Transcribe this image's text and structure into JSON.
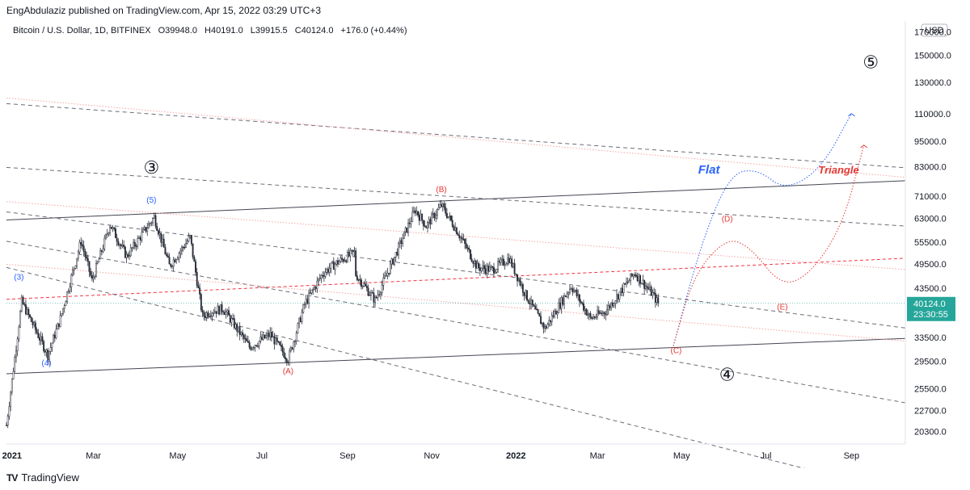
{
  "header": {
    "publisher": "EngAbdulaziz published on TradingView.com, Apr 15, 2022 03:29 UTC+3"
  },
  "chart_data": {
    "type": "candlestick",
    "symbol": "Bitcoin / U.S. Dollar, 1D, BITFINEX",
    "ohlc": {
      "open": "O39948.0",
      "high": "H40191.0",
      "low": "L39915.5",
      "close": "C40124.0",
      "change": "+176.0 (+0.44%)"
    },
    "currency": "USD",
    "price_labels": [
      "170000.0",
      "150000.0",
      "130000.0",
      "110000.0",
      "95000.0",
      "83000.0",
      "71000.0",
      "63000.0",
      "55500.0",
      "49500.0",
      "43500.0",
      "33500.0",
      "29500.0",
      "25500.0",
      "22700.0",
      "20300.0"
    ],
    "y_scale": "log",
    "x_labels": [
      "2021",
      "Mar",
      "May",
      "Jul",
      "Sep",
      "Nov",
      "2022",
      "Mar",
      "May",
      "Jul",
      "Sep"
    ],
    "x_label_dates": [
      "2021-01-01",
      "2021-03-01",
      "2021-05-01",
      "2021-07-01",
      "2021-09-01",
      "2021-11-01",
      "2022-01-01",
      "2022-03-01",
      "2022-05-01",
      "2022-07-01",
      "2022-09-01"
    ],
    "last_price": "40124.0",
    "countdown": "23:30:55",
    "close_path": [
      [
        "2020-12-28",
        21000
      ],
      [
        "2021-01-08",
        40500
      ],
      [
        "2021-01-27",
        30500
      ],
      [
        "2021-02-05",
        37000
      ],
      [
        "2021-02-20",
        55900
      ],
      [
        "2021-02-28",
        45200
      ],
      [
        "2021-03-13",
        61000
      ],
      [
        "2021-03-25",
        51500
      ],
      [
        "2021-04-14",
        63500
      ],
      [
        "2021-04-25",
        49000
      ],
      [
        "2021-05-10",
        57000
      ],
      [
        "2021-05-19",
        37500
      ],
      [
        "2021-05-25",
        38500
      ],
      [
        "2021-06-03",
        39000
      ],
      [
        "2021-06-22",
        31800
      ],
      [
        "2021-07-07",
        34000
      ],
      [
        "2021-07-20",
        29800
      ],
      [
        "2021-08-01",
        40000
      ],
      [
        "2021-08-14",
        47000
      ],
      [
        "2021-08-23",
        49500
      ],
      [
        "2021-09-06",
        52600
      ],
      [
        "2021-09-07",
        46800
      ],
      [
        "2021-09-21",
        40800
      ],
      [
        "2021-10-01",
        48000
      ],
      [
        "2021-10-20",
        66000
      ],
      [
        "2021-10-28",
        60500
      ],
      [
        "2021-11-08",
        67600
      ],
      [
        "2021-11-20",
        58500
      ],
      [
        "2021-12-04",
        48600
      ],
      [
        "2021-12-15",
        48000
      ],
      [
        "2021-12-27",
        51000
      ],
      [
        "2022-01-08",
        42000
      ],
      [
        "2022-01-22",
        35100
      ],
      [
        "2022-02-10",
        44000
      ],
      [
        "2022-02-24",
        37000
      ],
      [
        "2022-03-07",
        38500
      ],
      [
        "2022-03-28",
        47200
      ],
      [
        "2022-04-10",
        42100
      ],
      [
        "2022-04-14",
        40124
      ]
    ],
    "levels": {
      "upper_channel": [
        [
          "2020-12-28",
          62500
        ],
        [
          "2022-10-10",
          77000
        ]
      ],
      "lower_channel": [
        [
          "2020-12-28",
          27600
        ],
        [
          "2022-10-10",
          33300
        ]
      ],
      "red_dashed": [
        [
          "2020-12-28",
          41000
        ],
        [
          "2022-10-10",
          51000
        ]
      ]
    },
    "wave_labels": [
      {
        "text": "③",
        "date": "2021-04-12",
        "price": 80000,
        "color": "#131722"
      },
      {
        "text": "(5)",
        "date": "2021-04-12",
        "price": 68500,
        "color": "#2962ff"
      },
      {
        "text": "(3)",
        "date": "2021-01-06",
        "price": 45500,
        "color": "#2962ff"
      },
      {
        "text": "(4)",
        "date": "2021-01-26",
        "price": 28800,
        "color": "#2962ff"
      },
      {
        "text": "(A)",
        "date": "2021-07-20",
        "price": 27600,
        "color": "#e53935"
      },
      {
        "text": "(B)",
        "date": "2021-11-08",
        "price": 72500,
        "color": "#e53935"
      },
      {
        "text": "(C)",
        "date": "2022-04-27",
        "price": 30800,
        "color": "#e53935"
      },
      {
        "text": "(D)",
        "date": "2022-06-03",
        "price": 62000,
        "color": "#e53935"
      },
      {
        "text": "(E)",
        "date": "2022-07-13",
        "price": 38800,
        "color": "#e53935"
      },
      {
        "text": "④",
        "date": "2022-06-03",
        "price": 26600,
        "color": "#131722"
      },
      {
        "text": "⑤",
        "date": "2022-09-15",
        "price": 140000,
        "color": "#131722"
      }
    ],
    "scenarios": [
      {
        "name": "Flat",
        "color": "#2962ff",
        "points": [
          [
            "2022-04-25",
            32000
          ],
          [
            "2022-05-15",
            55000
          ],
          [
            "2022-06-05",
            80000
          ],
          [
            "2022-06-25",
            82000
          ],
          [
            "2022-07-15",
            73000
          ],
          [
            "2022-08-10",
            82000
          ],
          [
            "2022-09-01",
            110000
          ]
        ]
      },
      {
        "name": "Triangle",
        "color": "#e53935",
        "points": [
          [
            "2022-04-25",
            32000
          ],
          [
            "2022-05-10",
            47000
          ],
          [
            "2022-06-03",
            57000
          ],
          [
            "2022-06-20",
            54000
          ],
          [
            "2022-07-12",
            44000
          ],
          [
            "2022-08-01",
            46500
          ],
          [
            "2022-08-25",
            60000
          ],
          [
            "2022-09-10",
            93000
          ]
        ]
      }
    ]
  },
  "footer": {
    "brand": "TradingView",
    "logo_text": "TV"
  }
}
